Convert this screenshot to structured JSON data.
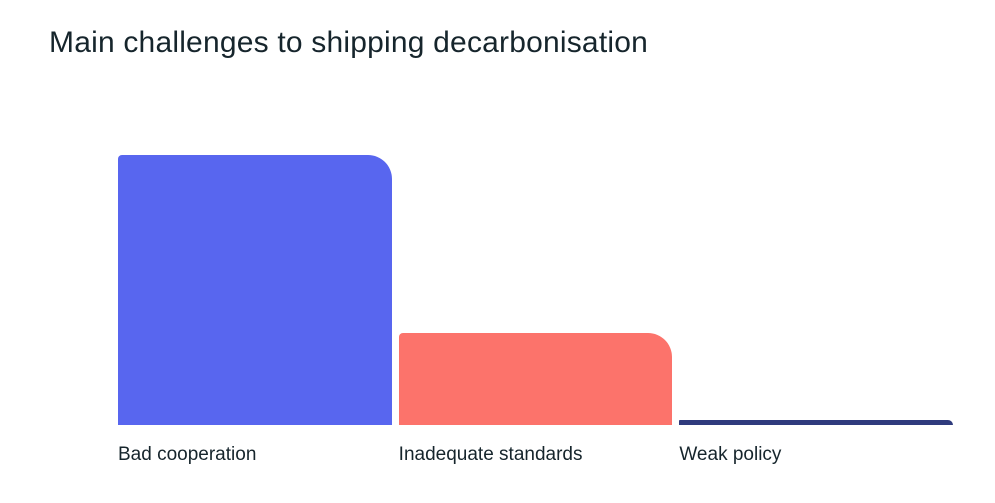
{
  "chart_data": {
    "type": "bar",
    "title": "Main challenges to shipping decarbonisation",
    "categories": [
      "Bad cooperation",
      "Inadequate standards",
      "Weak policy"
    ],
    "values": [
      100,
      34,
      2
    ],
    "values_estimated": true,
    "colors": [
      "#5866ef",
      "#fc736b",
      "#2f3b7d"
    ],
    "xlabel": "",
    "ylabel": "",
    "ylim": [
      0,
      100
    ],
    "grid": false,
    "legend": false,
    "axis_labels_shown": "x-only",
    "background_color": "#ffffff",
    "text_color": "#16252c"
  }
}
